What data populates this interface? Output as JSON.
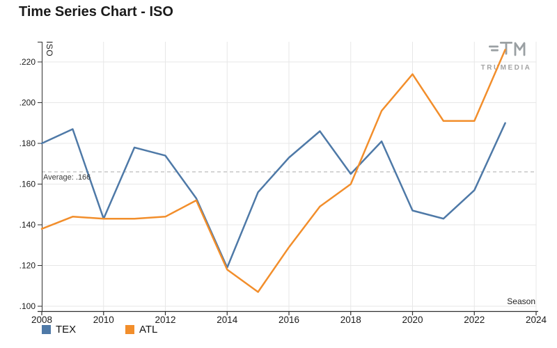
{
  "title": "Time Series Chart - ISO",
  "watermark": {
    "text": "TRUMEDIA"
  },
  "colors": {
    "tex": "#4e79a7",
    "atl": "#f28e2b",
    "grid": "#e7e7e7",
    "axis": "#2f2f2f",
    "tick_text": "#1a1a1a",
    "average_line": "#b5b5b5"
  },
  "legend": [
    {
      "label": "TEX",
      "color": "#4e79a7"
    },
    {
      "label": "ATL",
      "color": "#f28e2b"
    }
  ],
  "chart_data": {
    "type": "line",
    "title": "Time Series Chart - ISO",
    "xlabel": "Season",
    "ylabel": "ISO",
    "x": [
      2008,
      2009,
      2010,
      2011,
      2012,
      2013,
      2014,
      2015,
      2016,
      2017,
      2018,
      2019,
      2020,
      2021,
      2022,
      2023
    ],
    "series": [
      {
        "name": "TEX",
        "color": "#4e79a7",
        "values": [
          0.18,
          0.187,
          0.143,
          0.178,
          0.174,
          0.153,
          0.119,
          0.156,
          0.173,
          0.186,
          0.165,
          0.181,
          0.147,
          0.143,
          0.157,
          0.19
        ]
      },
      {
        "name": "ATL",
        "color": "#f28e2b",
        "values": [
          0.138,
          0.144,
          0.143,
          0.143,
          0.144,
          0.152,
          0.118,
          0.107,
          0.129,
          0.149,
          0.16,
          0.196,
          0.214,
          0.191,
          0.191,
          0.226
        ]
      }
    ],
    "xticks": [
      2008,
      2010,
      2012,
      2014,
      2016,
      2018,
      2020,
      2022,
      2024
    ],
    "yticks": [
      ".220",
      ".200",
      ".180",
      ".160",
      ".140",
      ".120",
      ".100"
    ],
    "ytick_values": [
      0.22,
      0.2,
      0.18,
      0.16,
      0.14,
      0.12,
      0.1
    ],
    "xlim": [
      2008,
      2024
    ],
    "ylim": [
      0.1,
      0.23
    ],
    "average": {
      "value": 0.166,
      "label": "Average: .166"
    },
    "grid": true,
    "legend_position": "bottom-left"
  }
}
